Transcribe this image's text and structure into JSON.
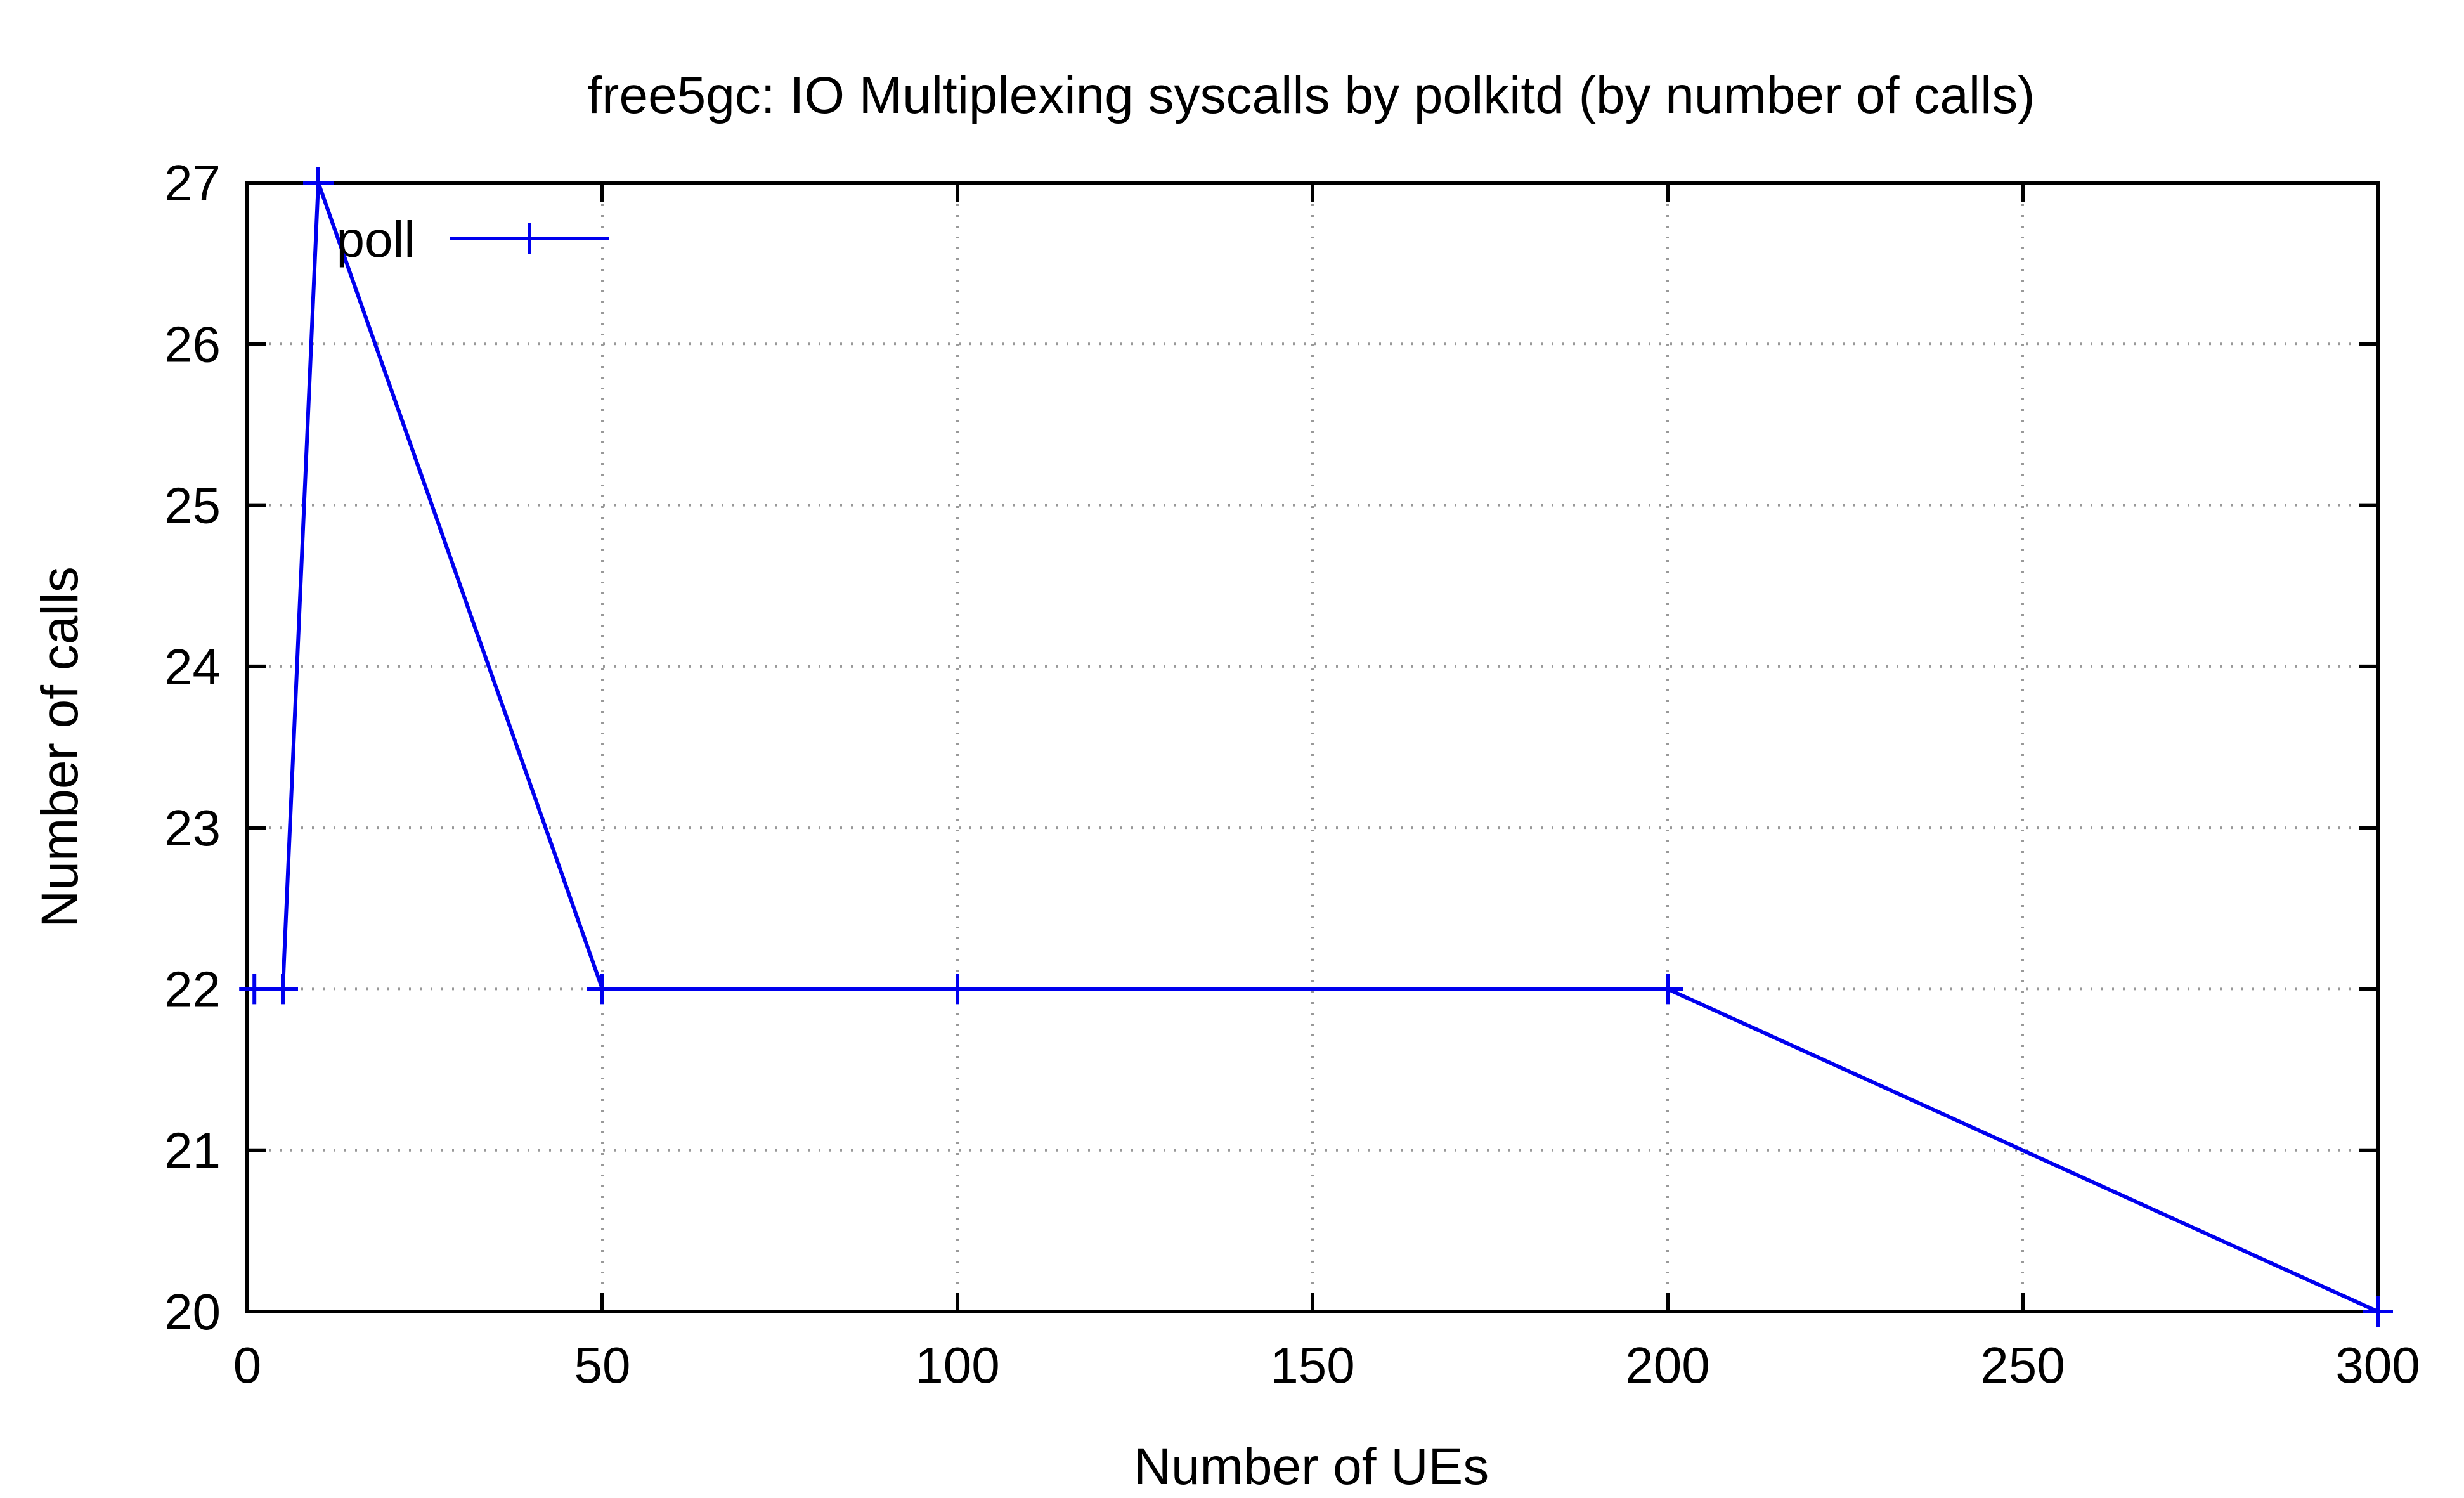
{
  "chart_data": {
    "type": "line",
    "title": "free5gc: IO Multiplexing syscalls by polkitd (by number of calls)",
    "xlabel": "Number of UEs",
    "ylabel": "Number of calls",
    "xlim": [
      0,
      300
    ],
    "ylim": [
      20,
      27
    ],
    "xticks": [
      0,
      50,
      100,
      150,
      200,
      250,
      300
    ],
    "yticks": [
      20,
      21,
      22,
      23,
      24,
      25,
      26,
      27
    ],
    "grid": true,
    "legend_position": "top-left",
    "series": [
      {
        "name": "poll",
        "color": "#0000ee",
        "marker": "plus",
        "x": [
          1,
          5,
          10,
          50,
          100,
          200,
          300
        ],
        "y": [
          22,
          22,
          27,
          22,
          22,
          22,
          20
        ]
      }
    ]
  }
}
